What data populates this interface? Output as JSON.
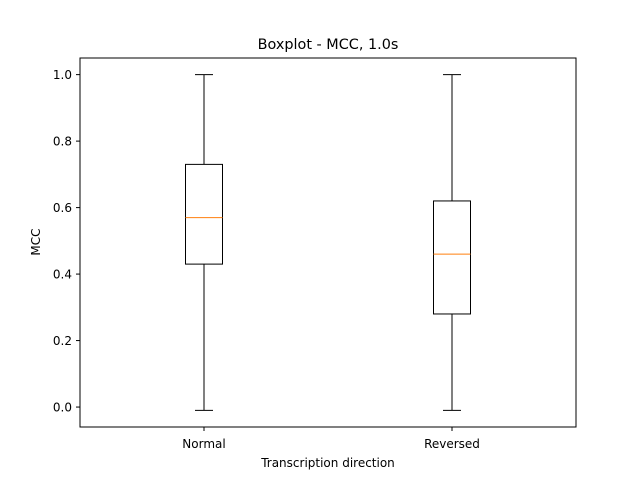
{
  "chart_data": {
    "type": "boxplot",
    "title": "Boxplot - MCC, 1.0s",
    "xlabel": "Transcription direction",
    "ylabel": "MCC",
    "categories": [
      "Normal",
      "Reversed"
    ],
    "boxes": [
      {
        "category": "Normal",
        "whisker_low": -0.01,
        "q1": 0.43,
        "median": 0.57,
        "q3": 0.73,
        "whisker_high": 1.0
      },
      {
        "category": "Reversed",
        "whisker_low": -0.01,
        "q1": 0.28,
        "median": 0.46,
        "q3": 0.62,
        "whisker_high": 1.0
      }
    ],
    "yticks": [
      "0.0",
      "0.2",
      "0.4",
      "0.6",
      "0.8",
      "1.0"
    ],
    "ylim": [
      -0.06,
      1.05
    ],
    "grid": false,
    "legend": false,
    "colors": {
      "box": "#000000",
      "median": "#ff7f0e",
      "axes": "#000000",
      "background": "#ffffff"
    }
  }
}
